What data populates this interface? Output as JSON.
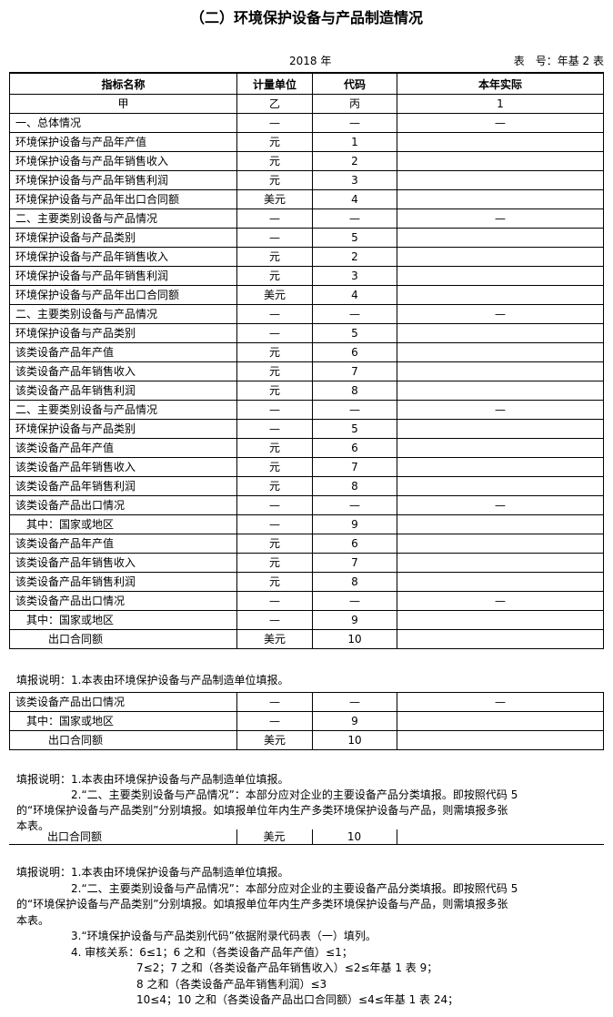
{
  "title": "（二）环境保护设备与产品制造情况",
  "year": "2018 年",
  "table_no": "表　号：年基 2 表",
  "headers": [
    "指标名称",
    "计量单位",
    "代码",
    "本年实际"
  ],
  "subheader": [
    "甲",
    "乙",
    "丙",
    "1"
  ],
  "rows": [
    [
      "一、总体情况",
      "—",
      "—",
      "—"
    ],
    [
      "环境保护设备与产品年产值",
      "元",
      "1",
      ""
    ],
    [
      "环境保护设备与产品年销售收入",
      "元",
      "2",
      ""
    ],
    [
      "环境保护设备与产品年销售利润",
      "元",
      "3",
      ""
    ],
    [
      "环境保护设备与产品年出口合同额",
      "美元",
      "4",
      ""
    ],
    [
      "二、主要类别设备与产品情况",
      "—",
      "—",
      "—"
    ],
    [
      "环境保护设备与产品类别",
      "—",
      "5",
      ""
    ],
    [
      "环境保护设备与产品年销售收入",
      "元",
      "2",
      ""
    ],
    [
      "环境保护设备与产品年销售利润",
      "元",
      "3",
      ""
    ],
    [
      "环境保护设备与产品年出口合同额",
      "美元",
      "4",
      ""
    ],
    [
      "二、主要类别设备与产品情况",
      "—",
      "—",
      "—"
    ],
    [
      "环境保护设备与产品类别",
      "—",
      "5",
      ""
    ],
    [
      "该类设备产品年产值",
      "元",
      "6",
      ""
    ],
    [
      "该类设备产品年销售收入",
      "元",
      "7",
      ""
    ],
    [
      "该类设备产品年销售利润",
      "元",
      "8",
      ""
    ],
    [
      "二、主要类别设备与产品情况",
      "—",
      "—",
      "—"
    ],
    [
      "环境保护设备与产品类别",
      "—",
      "5",
      ""
    ],
    [
      "该类设备产品年产值",
      "元",
      "6",
      ""
    ],
    [
      "该类设备产品年销售收入",
      "元",
      "7",
      ""
    ],
    [
      "该类设备产品年销售利润",
      "元",
      "8",
      ""
    ],
    [
      "该类设备产品出口情况",
      "—",
      "—",
      "—"
    ],
    [
      "　其中：国家或地区",
      "—",
      "9",
      ""
    ],
    [
      "该类设备产品年产值",
      "元",
      "6",
      ""
    ],
    [
      "该类设备产品年销售收入",
      "元",
      "7",
      ""
    ],
    [
      "该类设备产品年销售利润",
      "元",
      "8",
      ""
    ],
    [
      "该类设备产品出口情况",
      "—",
      "—",
      "—"
    ],
    [
      "　其中：国家或地区",
      "—",
      "9",
      ""
    ],
    [
      "　　　出口合同额",
      "美元",
      "10",
      ""
    ]
  ],
  "fragment_note": "填报说明：1.本表由环境保护设备与产品制造单位填报。",
  "fragment_rows": [
    [
      "该类设备产品出口情况",
      "—",
      "—",
      "—"
    ],
    [
      "　其中：国家或地区",
      "—",
      "9",
      ""
    ],
    [
      "　　　出口合同额",
      "美元",
      "10",
      ""
    ]
  ],
  "notes_a": [
    "填报说明：1.本表由环境保护设备与产品制造单位填报。",
    "　　　　　2.“二、主要类别设备与产品情况”：本部分应对企业的主要设备产品分类填报。即按照代码 5",
    "的“环境保护设备与产品类别”分别填报。如填报单位年内生产多类环境保护设备与产品，则需填报多张",
    "本表。"
  ],
  "single_row": [
    "　　　出口合同额",
    "美元",
    "10",
    ""
  ],
  "notes_b": [
    "填报说明：1.本表由环境保护设备与产品制造单位填报。",
    "　　　　　2.“二、主要类别设备与产品情况”：本部分应对企业的主要设备产品分类填报。即按照代码 5",
    "的“环境保护设备与产品类别”分别填报。如填报单位年内生产多类环境保护设备与产品，则需填报多张",
    "本表。",
    "　　　　　3.“环境保护设备与产品类别代码”依据附录代码表（一）填列。",
    "　　　　　4. 审核关系：6≤1；6 之和（各类设备产品年产值）≤1；",
    "　　　　　　　　　　　7≤2；7 之和（各类设备产品年销售收入）≤2≤年基 1 表 9；",
    "　　　　　　　　　　　8 之和（各类设备产品年销售利润）≤3",
    "　　　　　　　　　　　10≤4；10 之和（各类设备产品出口合同额）≤4≤年基 1 表 24；"
  ]
}
